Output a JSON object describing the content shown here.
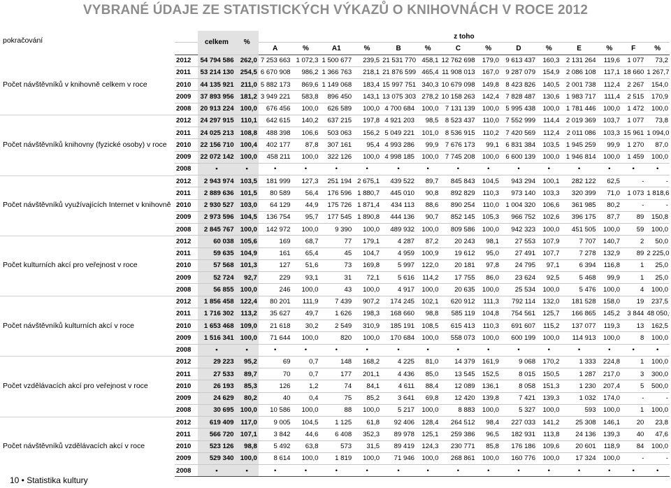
{
  "page_title": "VYBRANÉ ÚDAJE ZE STATISTICKÝCH VÝKAZŮ O KNIHOVNÁCH  V ROCE 2012",
  "continuation": "pokračování",
  "footer": "10 • Statistika kultury",
  "table": {
    "hdr_total": "celkem",
    "hdr_pct": "%",
    "hdr_of_which": "z toho",
    "sub_headers": [
      "A",
      "%",
      "A1",
      "%",
      "B",
      "%",
      "C",
      "%",
      "D",
      "%",
      "E",
      "%",
      "F",
      "%"
    ],
    "sections": [
      {
        "label": "Počet návštěvníků v knihovně celkem v roce",
        "rows": [
          [
            "2012",
            "54 794 586",
            "262,0",
            "7 253 663",
            "1 072,3",
            "1 500 677",
            "239,5",
            "21 531 770",
            "458,1",
            "12 762 698",
            "179,0",
            "9 613 437",
            "160,3",
            "2 131 264",
            "119,6",
            "1 077",
            "73,2"
          ],
          [
            "2011",
            "53 214 130",
            "254,5",
            "6 670 908",
            "986,2",
            "1 366 763",
            "218,1",
            "21 876 599",
            "465,4",
            "11 908 013",
            "167,0",
            "9 287 079",
            "154,9",
            "2 086 108",
            "117,1",
            "18 660",
            "1 267,7"
          ],
          [
            "2010",
            "44 135 921",
            "211,0",
            "5 882 173",
            "869,6",
            "1 149 068",
            "183,4",
            "15 997 751",
            "340,3",
            "10 679 098",
            "149,8",
            "8 423 826",
            "140,5",
            "2 001 738",
            "112,4",
            "2 267",
            "154,0"
          ],
          [
            "2009",
            "37 893 956",
            "181,2",
            "3 949 221",
            "583,8",
            "896 450",
            "143,1",
            "13 075 303",
            "278,2",
            "10 158 263",
            "142,4",
            "7 828 487",
            "130,6",
            "1 983 717",
            "111,4",
            "2 515",
            "170,9"
          ],
          [
            "2008",
            "20 913 224",
            "100,0",
            "676 456",
            "100,0",
            "626 589",
            "100,0",
            "4 700 684",
            "100,0",
            "7 131 139",
            "100,0",
            "5 995 438",
            "100,0",
            "1 781 446",
            "100,0",
            "1 472",
            "100,0"
          ]
        ]
      },
      {
        "label": "Počet návštěvníků knihovny (fyzické osoby) v roce",
        "rows": [
          [
            "2012",
            "24 297 915",
            "110,1",
            "642 615",
            "140,2",
            "637 215",
            "197,8",
            "4 921 203",
            "98,5",
            "8 523 437",
            "110,0",
            "7 552 999",
            "114,4",
            "2 019 369",
            "103,7",
            "1 077",
            "73,8"
          ],
          [
            "2011",
            "24 025 213",
            "108,8",
            "488 398",
            "106,6",
            "503 063",
            "156,2",
            "5 049 221",
            "101,0",
            "8 536 915",
            "110,2",
            "7 420 569",
            "112,4",
            "2 011 086",
            "103,3",
            "15 961",
            "1 094,0"
          ],
          [
            "2010",
            "22 156 710",
            "100,4",
            "402 177",
            "87,8",
            "307 161",
            "95,4",
            "4 993 286",
            "99,9",
            "7 676 173",
            "99,1",
            "6 831 384",
            "103,5",
            "1 945 259",
            "99,9",
            "1 270",
            "87,0"
          ],
          [
            "2009",
            "22 072 142",
            "100,0",
            "458 211",
            "100,0",
            "322 126",
            "100,0",
            "4 998 185",
            "100,0",
            "7 745 208",
            "100,0",
            "6 600 139",
            "100,0",
            "1 946 814",
            "100,0",
            "1 459",
            "100,0"
          ],
          [
            "2008",
            "•",
            "•",
            "•",
            "•",
            "•",
            "•",
            "•",
            "•",
            "•",
            "•",
            "•",
            "•",
            "•",
            "•",
            "•",
            "•"
          ]
        ]
      },
      {
        "label": "Počet návštěvníků využívajících Internet v knihovně",
        "rows": [
          [
            "2012",
            "2 943 974",
            "103,5",
            "181 999",
            "127,3",
            "251 194",
            "2 675,1",
            "439 522",
            "89,7",
            "845 843",
            "104,5",
            "943 294",
            "100,1",
            "282 122",
            "62,5",
            "-",
            "-"
          ],
          [
            "2011",
            "2 889 636",
            "101,5",
            "80 589",
            "56,4",
            "176 596",
            "1 880,7",
            "445 010",
            "90,8",
            "892 829",
            "110,3",
            "973 140",
            "103,3",
            "320 399",
            "71,0",
            "1 073",
            "1 818,6"
          ],
          [
            "2010",
            "2 930 527",
            "103,0",
            "64 129",
            "44,9",
            "175 726",
            "1 871,4",
            "434 113",
            "88,6",
            "890 254",
            "110,0",
            "1 004 320",
            "106,6",
            "361 985",
            "80,2",
            "-",
            "-"
          ],
          [
            "2009",
            "2 973 596",
            "104,5",
            "136 754",
            "95,7",
            "177 545",
            "1 890,8",
            "444 136",
            "90,7",
            "852 145",
            "105,3",
            "966 752",
            "102,6",
            "396 175",
            "87,7",
            "89",
            "150,8"
          ],
          [
            "2008",
            "2 845 767",
            "100,0",
            "142 972",
            "100,0",
            "9 390",
            "100,0",
            "489 932",
            "100,0",
            "809 586",
            "100,0",
            "942 323",
            "100,0",
            "451 505",
            "100,0",
            "59",
            "100,0"
          ]
        ]
      },
      {
        "label": "Počet kulturních akcí pro veřejnost v roce",
        "rows": [
          [
            "2012",
            "60 038",
            "105,6",
            "169",
            "68,7",
            "77",
            "179,1",
            "4 287",
            "87,2",
            "20 243",
            "98,1",
            "27 553",
            "107,9",
            "7 707",
            "140,7",
            "2",
            "50,0"
          ],
          [
            "2011",
            "59 635",
            "104,9",
            "161",
            "65,4",
            "45",
            "104,7",
            "4 959",
            "100,9",
            "19 612",
            "95,0",
            "27 491",
            "107,7",
            "7 278",
            "132,9",
            "89",
            "2 225,0"
          ],
          [
            "2010",
            "57 568",
            "101,3",
            "127",
            "51,6",
            "73",
            "169,8",
            "5 997",
            "122,0",
            "20 181",
            "97,8",
            "24 795",
            "97,1",
            "6 394",
            "116,8",
            "1",
            "25,0"
          ],
          [
            "2009",
            "52 724",
            "92,7",
            "229",
            "93,1",
            "31",
            "72,1",
            "5 616",
            "114,2",
            "17 755",
            "86,0",
            "23 624",
            "92,5",
            "5 468",
            "99,9",
            "1",
            "25,0"
          ],
          [
            "2008",
            "56 855",
            "100,0",
            "246",
            "100,0",
            "43",
            "100,0",
            "4 917",
            "100,0",
            "20 635",
            "100,0",
            "25 534",
            "100,0",
            "5 476",
            "100,0",
            "4",
            "100,0"
          ]
        ]
      },
      {
        "label": "Počet návštěvníků kulturních akcí v roce",
        "rows": [
          [
            "2012",
            "1 856 458",
            "122,4",
            "80 201",
            "111,9",
            "7 439",
            "907,2",
            "174 245",
            "102,1",
            "620 912",
            "111,3",
            "792 114",
            "132,0",
            "181 528",
            "158,0",
            "19",
            "237,5"
          ],
          [
            "2011",
            "1 716 302",
            "113,2",
            "35 627",
            "49,7",
            "1 626",
            "198,3",
            "168 660",
            "98,8",
            "585 119",
            "104,8",
            "754 561",
            "125,7",
            "166 865",
            "145,2",
            "3 844",
            "48 050,0"
          ],
          [
            "2010",
            "1 653 468",
            "109,0",
            "21 618",
            "30,2",
            "2 549",
            "310,9",
            "185 191",
            "108,5",
            "615 413",
            "110,3",
            "691 607",
            "115,2",
            "137 077",
            "119,3",
            "13",
            "162,5"
          ],
          [
            "2009",
            "1 516 341",
            "100,0",
            "71 644",
            "100,0",
            "820",
            "100,0",
            "170 684",
            "100,0",
            "558 073",
            "100,0",
            "600 199",
            "100,0",
            "114 913",
            "100,0",
            "8",
            "100,0"
          ],
          [
            "2008",
            "•",
            "•",
            "•",
            "•",
            "•",
            "•",
            "•",
            "•",
            "•",
            "•",
            "•",
            "•",
            "•",
            "•",
            "•",
            "•"
          ]
        ]
      },
      {
        "label": "Počet vzdělávacích akcí pro veřejnost v roce",
        "rows": [
          [
            "2012",
            "29 223",
            "95,2",
            "69",
            "0,7",
            "148",
            "168,2",
            "4 225",
            "81,0",
            "14 379",
            "161,9",
            "9 068",
            "170,2",
            "1 333",
            "224,8",
            "1",
            "100,0"
          ],
          [
            "2011",
            "27 533",
            "89,7",
            "70",
            "0,7",
            "177",
            "201,1",
            "4 436",
            "85,0",
            "13 545",
            "152,5",
            "8 015",
            "150,5",
            "1 287",
            "217,0",
            "3",
            "300,0"
          ],
          [
            "2010",
            "26 193",
            "85,3",
            "126",
            "1,2",
            "74",
            "84,1",
            "4 611",
            "88,4",
            "12 089",
            "136,1",
            "8 058",
            "151,3",
            "1 230",
            "207,4",
            "5",
            "500,0"
          ],
          [
            "2009",
            "24 629",
            "80,2",
            "40",
            "0,4",
            "75",
            "85,2",
            "3 641",
            "69,8",
            "12 420",
            "139,8",
            "7 421",
            "139,3",
            "1 032",
            "174,0",
            "-",
            "-"
          ],
          [
            "2008",
            "30 695",
            "100,0",
            "10 586",
            "100,0",
            "88",
            "100,0",
            "5 217",
            "100,0",
            "8 883",
            "100,0",
            "5 327",
            "100,0",
            "593",
            "100,0",
            "1",
            "100,0"
          ]
        ]
      },
      {
        "label": "Počet návštěvníků vzdělávacích akcí v roce",
        "rows": [
          [
            "2012",
            "619 409",
            "117,0",
            "9 005",
            "104,5",
            "1 125",
            "61,8",
            "92 406",
            "128,4",
            "264 512",
            "98,4",
            "227 033",
            "141,2",
            "25 308",
            "146,1",
            "20",
            "23,8"
          ],
          [
            "2011",
            "566 720",
            "107,1",
            "3 842",
            "44,6",
            "6 408",
            "352,3",
            "89 978",
            "125,1",
            "259 386",
            "96,5",
            "182 931",
            "113,8",
            "24 136",
            "139,3",
            "40",
            "47,6"
          ],
          [
            "2010",
            "523 126",
            "98,8",
            "5 492",
            "63,8",
            "573",
            "31,5",
            "89 419",
            "124,3",
            "230 771",
            "85,8",
            "176 186",
            "109,6",
            "20 601",
            "118,9",
            "84",
            "100,0"
          ],
          [
            "2009",
            "529 340",
            "100,0",
            "8 614",
            "100,0",
            "1 819",
            "100,0",
            "71 946",
            "100,0",
            "268 861",
            "100,0",
            "160 776",
            "100,0",
            "17 324",
            "100,0",
            "-",
            "-"
          ],
          [
            "2008",
            "•",
            "•",
            "•",
            "•",
            "•",
            "•",
            "•",
            "•",
            "•",
            "•",
            "•",
            "•",
            "•",
            "•",
            "•",
            "•"
          ]
        ]
      }
    ]
  }
}
